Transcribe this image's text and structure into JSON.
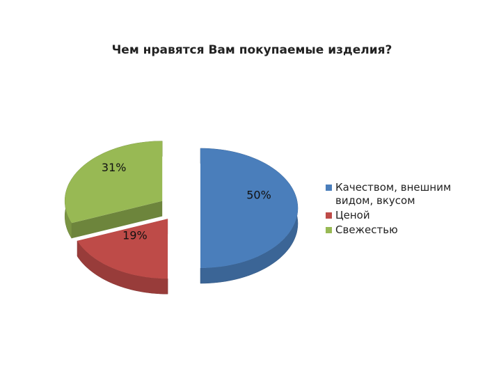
{
  "chart_data": {
    "type": "pie3d",
    "title": "Чем нравятся Вам покупаемые изделия?",
    "categories": [
      "Качеством, внешним видом, вкусом",
      "Ценой",
      "Свежестью"
    ],
    "values": [
      50,
      19,
      31
    ],
    "value_labels": [
      "50%",
      "19%",
      "31%"
    ],
    "colors": [
      "#4a7ebb",
      "#be4b48",
      "#98b954"
    ],
    "legend": "right"
  }
}
